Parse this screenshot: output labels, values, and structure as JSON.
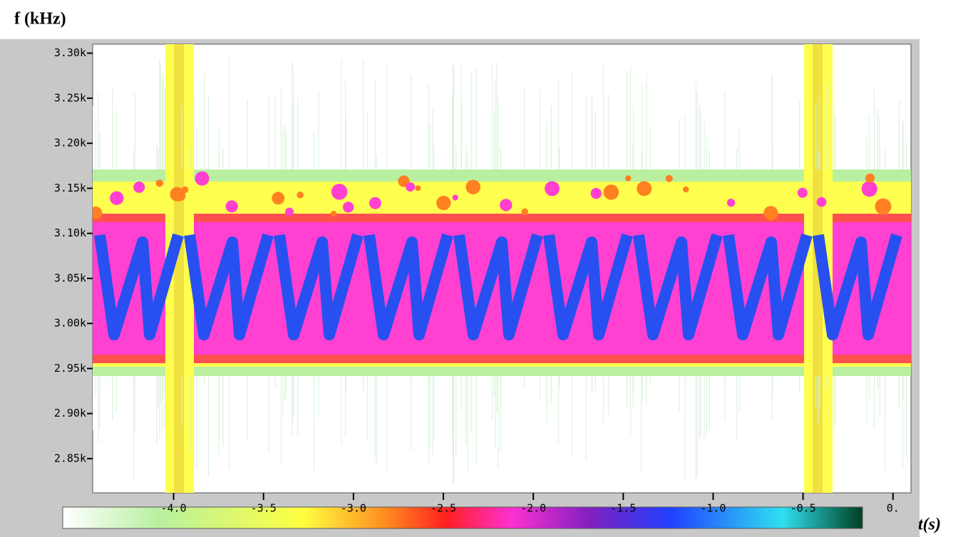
{
  "chart_data": {
    "type": "spectrogram",
    "y_label": "f (kHz)",
    "x_label": "t(s)",
    "ylim": [
      2812,
      3310
    ],
    "yticks": [
      {
        "value": 3300,
        "label": "3.30k"
      },
      {
        "value": 3250,
        "label": "3.25k"
      },
      {
        "value": 3200,
        "label": "3.20k"
      },
      {
        "value": 3150,
        "label": "3.15k"
      },
      {
        "value": 3100,
        "label": "3.10k"
      },
      {
        "value": 3050,
        "label": "3.05k"
      },
      {
        "value": 3000,
        "label": "3.00k"
      },
      {
        "value": 2950,
        "label": "2.95k"
      },
      {
        "value": 2900,
        "label": "2.90k"
      },
      {
        "value": 2850,
        "label": "2.85k"
      }
    ],
    "xlim": [
      -4.45,
      0.1
    ],
    "xticks": [
      {
        "value": -4,
        "label": "-4.0"
      },
      -3.5,
      {
        "value": -3,
        "label": "-3.0"
      },
      -2.5,
      {
        "value": -2,
        "label": "-2.0"
      },
      -1.5,
      {
        "value": -1,
        "label": "-1.0"
      },
      -0.5,
      {
        "value": 0,
        "label": "0."
      }
    ]
  }
}
